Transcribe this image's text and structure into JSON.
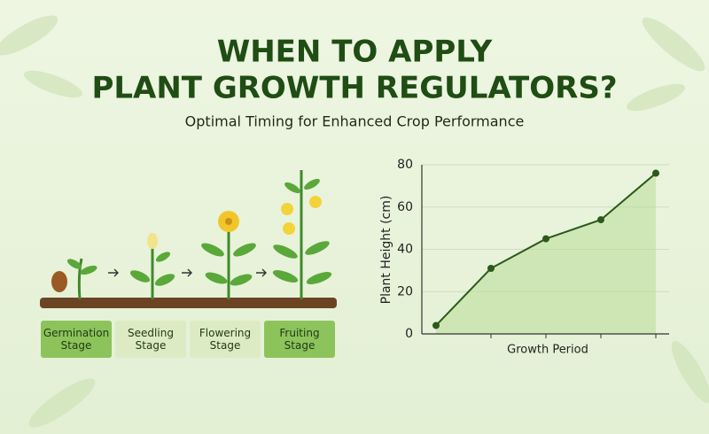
{
  "header": {
    "title": [
      "WHEN TO APPLY",
      "PLANT GROWTH REGULATORS?"
    ],
    "subtitle": "Optimal Timing for Enhanced Crop Performance"
  },
  "stages": [
    "Germination Stage",
    "Seedling Stage",
    "Flowering Stage",
    "Fruiting Stage"
  ],
  "chart_data": {
    "type": "line",
    "categories": [
      null,
      null,
      null,
      null,
      null
    ],
    "series": [
      {
        "values": [
          4,
          31,
          45,
          54,
          76
        ],
        "color": "#2b5a1a"
      }
    ],
    "ylabel": "Plant Height (cm)",
    "xlabel": "Growth Period",
    "ylim": [
      0,
      80
    ],
    "yticks": [
      0,
      20,
      40,
      60,
      80
    ],
    "grid": true,
    "area": true
  }
}
